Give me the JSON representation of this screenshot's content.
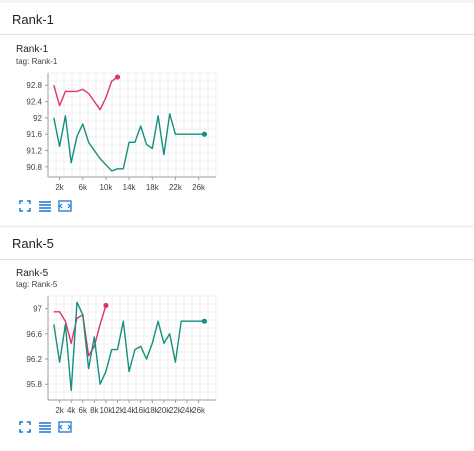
{
  "sections": [
    {
      "title": "Rank-1",
      "card_title": "Rank-1",
      "tag": "tag: Rank-1"
    },
    {
      "title": "Rank-5",
      "card_title": "Rank-5",
      "tag": "tag: Rank-5"
    }
  ],
  "colors": {
    "pink": "#e0336e",
    "teal": "#13907e",
    "grid": "#e6e6e6",
    "axis": "#9e9e9e",
    "toolbar": "#1976d2"
  },
  "icons": [
    "expand-icon",
    "data-table-icon",
    "fit-domain-icon"
  ],
  "chart_data": [
    {
      "type": "line",
      "title": "Rank-1",
      "xlabel": "",
      "ylabel": "",
      "x_ticks": [
        "2k",
        "6k",
        "10k",
        "14k",
        "18k",
        "22k",
        "26k"
      ],
      "y_ticks": [
        "90.8",
        "91.2",
        "91.6",
        "92",
        "92.4",
        "92.8"
      ],
      "xlim": [
        0,
        29000
      ],
      "ylim": [
        90.55,
        93.1
      ],
      "grid": true,
      "series": [
        {
          "color": "#e0336e",
          "x": [
            1000,
            2000,
            3000,
            4000,
            5000,
            6000,
            7000,
            8000,
            9000,
            10000,
            11000,
            12000
          ],
          "y": [
            92.8,
            92.3,
            92.65,
            92.65,
            92.65,
            92.7,
            92.6,
            92.4,
            92.2,
            92.5,
            92.9,
            93.0
          ]
        },
        {
          "color": "#13907e",
          "x": [
            1000,
            2000,
            3000,
            4000,
            5000,
            6000,
            7000,
            8000,
            9000,
            10000,
            11000,
            12000,
            13000,
            14000,
            15000,
            16000,
            17000,
            18000,
            19000,
            20000,
            21000,
            22000,
            23000,
            24000,
            25000,
            26000,
            27000
          ],
          "y": [
            92.0,
            91.3,
            92.05,
            90.9,
            91.55,
            91.85,
            91.4,
            91.2,
            91.0,
            90.85,
            90.7,
            90.75,
            90.75,
            91.4,
            91.4,
            91.8,
            91.35,
            91.25,
            92.05,
            91.1,
            92.1,
            91.6,
            91.6,
            91.6,
            91.6,
            91.6,
            91.6
          ]
        }
      ]
    },
    {
      "type": "line",
      "title": "Rank-5",
      "xlabel": "",
      "ylabel": "",
      "x_ticks": [
        "2k",
        "4k",
        "6k",
        "8k",
        "10k",
        "12k",
        "14k",
        "16k",
        "18k",
        "20k",
        "22k",
        "24k",
        "26k"
      ],
      "y_ticks": [
        "95.8",
        "96.2",
        "96.6",
        "97"
      ],
      "xlim": [
        0,
        29000
      ],
      "ylim": [
        95.55,
        97.2
      ],
      "grid": true,
      "series": [
        {
          "color": "#e0336e",
          "x": [
            1000,
            2000,
            3000,
            4000,
            5000,
            6000,
            7000,
            8000,
            9000,
            10000
          ],
          "y": [
            96.95,
            96.95,
            96.8,
            96.45,
            96.85,
            96.9,
            96.25,
            96.4,
            96.75,
            97.05
          ]
        },
        {
          "color": "#13907e",
          "x": [
            1000,
            2000,
            3000,
            4000,
            5000,
            6000,
            7000,
            8000,
            9000,
            10000,
            11000,
            12000,
            13000,
            14000,
            15000,
            16000,
            17000,
            18000,
            19000,
            20000,
            21000,
            22000,
            23000,
            24000,
            25000,
            26000,
            27000
          ],
          "y": [
            96.75,
            96.15,
            96.75,
            95.7,
            97.1,
            96.9,
            96.05,
            96.55,
            95.8,
            96.0,
            96.35,
            96.35,
            96.8,
            96.0,
            96.35,
            96.4,
            96.2,
            96.45,
            96.8,
            96.45,
            96.6,
            96.15,
            96.8,
            96.8,
            96.8,
            96.8,
            96.8
          ]
        }
      ]
    }
  ]
}
